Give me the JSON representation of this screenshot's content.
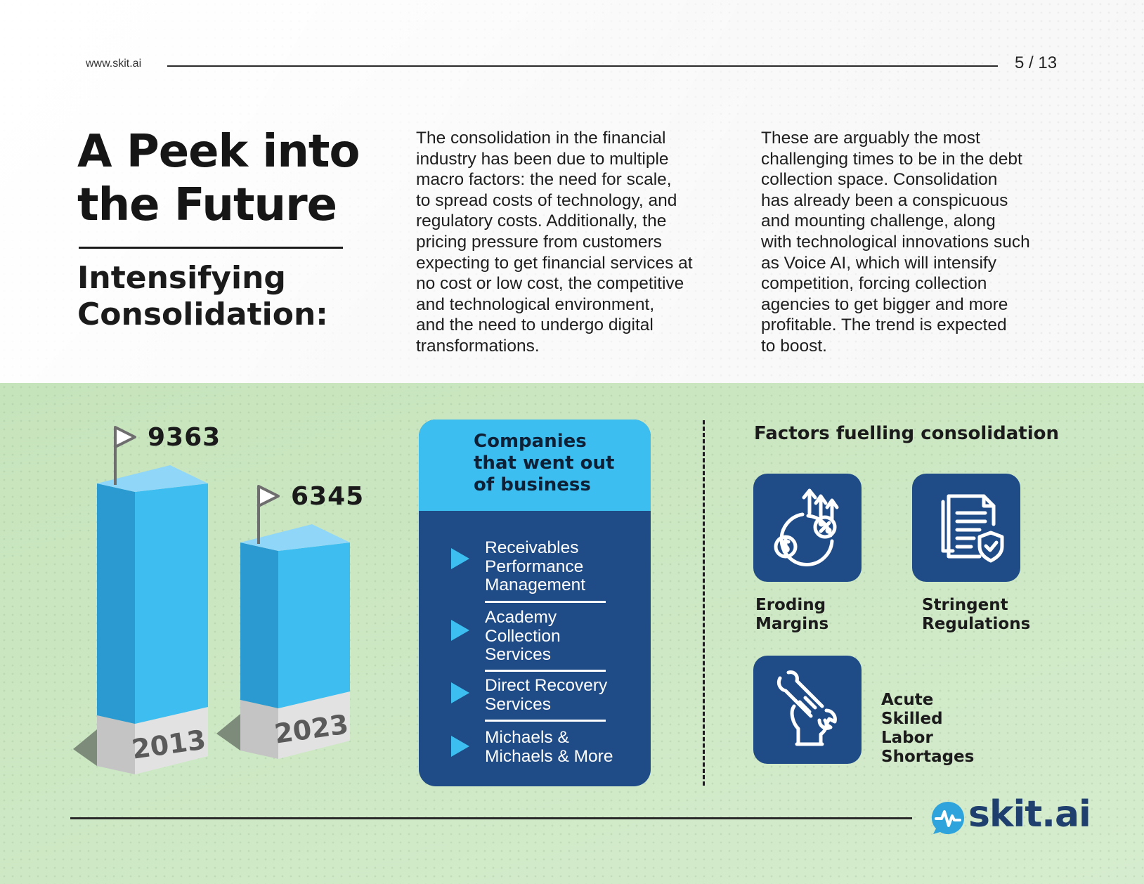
{
  "header": {
    "url": "www.skit.ai",
    "page": "5 / 13"
  },
  "title": {
    "lines": [
      "A Peek into",
      "the Future"
    ]
  },
  "subtitle": {
    "lines": [
      "Intensifying",
      "Consolidation:"
    ]
  },
  "paragraph1": {
    "lines": [
      "The consolidation in the financial",
      "industry has been due to multiple",
      "macro factors: the need for scale,",
      "to spread costs of technology, and",
      "regulatory costs. Additionally, the",
      "pricing pressure from customers",
      "expecting to get financial services at",
      "no cost or low cost, the competitive",
      "and technological environment,",
      "and the need to undergo digital",
      "transformations."
    ]
  },
  "paragraph2": {
    "lines": [
      "These are arguably the most",
      "challenging times to be in the debt",
      "collection space. Consolidation",
      "has already been a conspicuous",
      "and mounting challenge, along",
      "with technological innovations such",
      "as Voice AI, which will intensify",
      "competition, forcing collection",
      "agencies to get bigger and more",
      "profitable. The trend is expected",
      "to boost."
    ]
  },
  "chart_data": {
    "type": "bar",
    "categories": [
      "2013",
      "2023"
    ],
    "values": [
      9363,
      6345
    ],
    "value_labels": [
      "9363",
      "6345"
    ],
    "colors": {
      "bar_front": "#3dbdf0",
      "bar_side": "#2a9ad0",
      "bar_top": "#8fd6f8",
      "base": "#e2e2e2"
    }
  },
  "companies": {
    "title": [
      "Companies",
      "that went out",
      "of business"
    ],
    "items": [
      [
        "Receivables",
        "Performance",
        "Management"
      ],
      [
        "Academy",
        "Collection",
        "Services"
      ],
      [
        "Direct Recovery",
        "Services"
      ],
      [
        "Michaels &",
        "Michaels & More"
      ]
    ]
  },
  "factors": {
    "title": "Factors fuelling consolidation",
    "items": [
      {
        "icon": "eroding-margins-icon",
        "label": [
          "Eroding",
          "Margins"
        ]
      },
      {
        "icon": "regulation-document-icon",
        "label": [
          "Stringent",
          "Regulations"
        ]
      },
      {
        "icon": "hand-wrench-icon",
        "label": [
          "Acute",
          "Skilled",
          "Labor",
          "Shortages"
        ]
      }
    ]
  },
  "footer": {
    "logo_text": "skit.ai"
  },
  "colors": {
    "navy": "#1f4b87",
    "cyan": "#3cbff0",
    "green_bg": "#cde8c4"
  }
}
